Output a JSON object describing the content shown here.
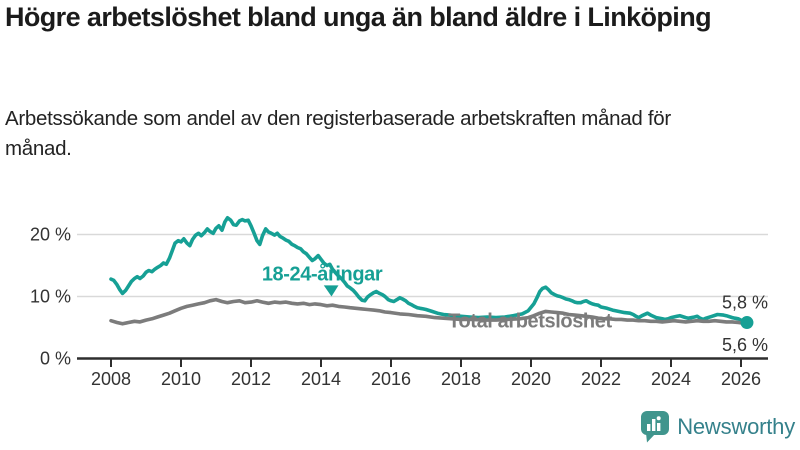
{
  "header": {
    "title": "Högre arbetslöshet bland unga än bland äldre i Linköping",
    "subtitle": "Arbetssökande som andel av den registerbaserade arbetskraften månad för månad."
  },
  "colors": {
    "young_line": "#16a095",
    "total_line": "#7c7c7c",
    "axis_text": "#333333",
    "axis_line": "#2e2e2e",
    "grid_line": "#d9d9d9",
    "end_label_text": "#333333",
    "logo_teal": "#35818b",
    "logo_icon_teal": "#40958d"
  },
  "chart_data": {
    "type": "line",
    "title": "Högre arbetslöshet bland unga än bland äldre i Linköping",
    "xlabel": "",
    "ylabel": "",
    "grid": "horizontal",
    "legend_position": "inline-labels",
    "xlim": [
      2007.6,
      2026.9
    ],
    "ylim": [
      0,
      24.5
    ],
    "x_ticks": [
      2008,
      2010,
      2012,
      2014,
      2016,
      2018,
      2020,
      2022,
      2024,
      2026
    ],
    "y_ticks": [
      {
        "value": 0,
        "label": "0 %"
      },
      {
        "value": 10,
        "label": "10 %"
      },
      {
        "value": 20,
        "label": "20 %"
      }
    ],
    "series": [
      {
        "name": "18-24-åringar",
        "color": "#16a095",
        "end_label": "5,8 %",
        "end_label_position": "above",
        "end_dot": true,
        "label_anchor": {
          "x": 2014.03,
          "y": 12.6
        },
        "points": [
          [
            2008.0,
            12.8
          ],
          [
            2008.08,
            12.6
          ],
          [
            2008.17,
            11.9
          ],
          [
            2008.25,
            11.1
          ],
          [
            2008.33,
            10.5
          ],
          [
            2008.42,
            11.0
          ],
          [
            2008.5,
            11.7
          ],
          [
            2008.58,
            12.4
          ],
          [
            2008.67,
            12.9
          ],
          [
            2008.75,
            13.2
          ],
          [
            2008.83,
            12.9
          ],
          [
            2008.92,
            13.3
          ],
          [
            2009.0,
            13.9
          ],
          [
            2009.08,
            14.2
          ],
          [
            2009.17,
            14.0
          ],
          [
            2009.25,
            14.4
          ],
          [
            2009.33,
            14.7
          ],
          [
            2009.42,
            15.0
          ],
          [
            2009.5,
            15.4
          ],
          [
            2009.58,
            15.2
          ],
          [
            2009.67,
            16.2
          ],
          [
            2009.75,
            17.4
          ],
          [
            2009.83,
            18.6
          ],
          [
            2009.92,
            19.0
          ],
          [
            2010.0,
            18.8
          ],
          [
            2010.08,
            19.3
          ],
          [
            2010.17,
            18.6
          ],
          [
            2010.25,
            18.2
          ],
          [
            2010.33,
            19.2
          ],
          [
            2010.42,
            19.9
          ],
          [
            2010.5,
            20.2
          ],
          [
            2010.58,
            19.8
          ],
          [
            2010.67,
            20.3
          ],
          [
            2010.75,
            20.9
          ],
          [
            2010.83,
            20.5
          ],
          [
            2010.92,
            20.2
          ],
          [
            2011.0,
            21.0
          ],
          [
            2011.08,
            21.4
          ],
          [
            2011.17,
            20.7
          ],
          [
            2011.25,
            22.0
          ],
          [
            2011.33,
            22.7
          ],
          [
            2011.42,
            22.3
          ],
          [
            2011.5,
            21.6
          ],
          [
            2011.58,
            21.5
          ],
          [
            2011.67,
            22.2
          ],
          [
            2011.75,
            22.4
          ],
          [
            2011.83,
            22.2
          ],
          [
            2011.92,
            22.3
          ],
          [
            2012.0,
            21.4
          ],
          [
            2012.08,
            20.3
          ],
          [
            2012.17,
            19.0
          ],
          [
            2012.25,
            18.4
          ],
          [
            2012.33,
            19.8
          ],
          [
            2012.42,
            20.9
          ],
          [
            2012.5,
            20.4
          ],
          [
            2012.58,
            20.2
          ],
          [
            2012.67,
            19.9
          ],
          [
            2012.75,
            20.2
          ],
          [
            2012.83,
            19.7
          ],
          [
            2012.92,
            19.4
          ],
          [
            2013.0,
            19.1
          ],
          [
            2013.08,
            18.9
          ],
          [
            2013.17,
            18.4
          ],
          [
            2013.25,
            18.2
          ],
          [
            2013.33,
            17.9
          ],
          [
            2013.42,
            17.7
          ],
          [
            2013.5,
            17.2
          ],
          [
            2013.58,
            16.9
          ],
          [
            2013.67,
            16.3
          ],
          [
            2013.75,
            15.8
          ],
          [
            2013.83,
            16.1
          ],
          [
            2013.92,
            16.6
          ],
          [
            2014.0,
            16.0
          ],
          [
            2014.08,
            15.4
          ],
          [
            2014.17,
            15.0
          ],
          [
            2014.25,
            15.2
          ],
          [
            2014.33,
            14.4
          ],
          [
            2014.42,
            13.8
          ],
          [
            2014.5,
            13.3
          ],
          [
            2014.58,
            12.9
          ],
          [
            2014.67,
            12.3
          ],
          [
            2014.75,
            11.7
          ],
          [
            2014.83,
            11.4
          ],
          [
            2014.92,
            11.0
          ],
          [
            2015.0,
            10.5
          ],
          [
            2015.08,
            9.9
          ],
          [
            2015.17,
            9.4
          ],
          [
            2015.25,
            9.3
          ],
          [
            2015.33,
            9.9
          ],
          [
            2015.42,
            10.3
          ],
          [
            2015.5,
            10.6
          ],
          [
            2015.58,
            10.8
          ],
          [
            2015.67,
            10.5
          ],
          [
            2015.75,
            10.3
          ],
          [
            2015.83,
            10.0
          ],
          [
            2015.92,
            9.5
          ],
          [
            2016.0,
            9.3
          ],
          [
            2016.08,
            9.2
          ],
          [
            2016.17,
            9.5
          ],
          [
            2016.25,
            9.8
          ],
          [
            2016.33,
            9.6
          ],
          [
            2016.42,
            9.3
          ],
          [
            2016.5,
            8.9
          ],
          [
            2016.58,
            8.7
          ],
          [
            2016.67,
            8.4
          ],
          [
            2016.75,
            8.2
          ],
          [
            2016.83,
            8.1
          ],
          [
            2016.92,
            8.0
          ],
          [
            2017.0,
            7.9
          ],
          [
            2017.17,
            7.6
          ],
          [
            2017.33,
            7.3
          ],
          [
            2017.5,
            7.1
          ],
          [
            2017.67,
            7.0
          ],
          [
            2017.83,
            6.9
          ],
          [
            2018.0,
            6.8
          ],
          [
            2018.25,
            6.7
          ],
          [
            2018.5,
            6.6
          ],
          [
            2018.75,
            6.7
          ],
          [
            2019.0,
            6.6
          ],
          [
            2019.25,
            6.7
          ],
          [
            2019.5,
            6.9
          ],
          [
            2019.75,
            7.2
          ],
          [
            2019.92,
            7.7
          ],
          [
            2020.08,
            8.8
          ],
          [
            2020.17,
            9.8
          ],
          [
            2020.25,
            10.8
          ],
          [
            2020.33,
            11.3
          ],
          [
            2020.42,
            11.5
          ],
          [
            2020.5,
            11.1
          ],
          [
            2020.58,
            10.6
          ],
          [
            2020.67,
            10.3
          ],
          [
            2020.75,
            10.1
          ],
          [
            2020.83,
            10.0
          ],
          [
            2020.92,
            9.8
          ],
          [
            2021.0,
            9.6
          ],
          [
            2021.08,
            9.5
          ],
          [
            2021.17,
            9.3
          ],
          [
            2021.25,
            9.1
          ],
          [
            2021.33,
            9.0
          ],
          [
            2021.42,
            9.0
          ],
          [
            2021.5,
            9.2
          ],
          [
            2021.58,
            9.3
          ],
          [
            2021.67,
            9.0
          ],
          [
            2021.75,
            8.8
          ],
          [
            2021.83,
            8.7
          ],
          [
            2021.92,
            8.6
          ],
          [
            2022.0,
            8.3
          ],
          [
            2022.17,
            8.1
          ],
          [
            2022.33,
            7.8
          ],
          [
            2022.5,
            7.6
          ],
          [
            2022.67,
            7.4
          ],
          [
            2022.83,
            7.3
          ],
          [
            2022.92,
            7.1
          ],
          [
            2023.0,
            6.8
          ],
          [
            2023.08,
            6.6
          ],
          [
            2023.17,
            6.9
          ],
          [
            2023.33,
            7.3
          ],
          [
            2023.42,
            7.0
          ],
          [
            2023.58,
            6.6
          ],
          [
            2023.75,
            6.4
          ],
          [
            2023.83,
            6.3
          ],
          [
            2023.92,
            6.4
          ],
          [
            2024.0,
            6.6
          ],
          [
            2024.17,
            6.8
          ],
          [
            2024.25,
            6.9
          ],
          [
            2024.42,
            6.6
          ],
          [
            2024.5,
            6.5
          ],
          [
            2024.67,
            6.7
          ],
          [
            2024.75,
            6.8
          ],
          [
            2024.83,
            6.5
          ],
          [
            2024.92,
            6.3
          ],
          [
            2025.0,
            6.5
          ],
          [
            2025.17,
            6.8
          ],
          [
            2025.33,
            7.1
          ],
          [
            2025.5,
            7.0
          ],
          [
            2025.58,
            6.9
          ],
          [
            2025.75,
            6.6
          ],
          [
            2025.83,
            6.5
          ],
          [
            2025.92,
            6.4
          ],
          [
            2026.0,
            6.2
          ],
          [
            2026.08,
            6.0
          ],
          [
            2026.17,
            5.8
          ]
        ]
      },
      {
        "name": "Total arbetslöshet",
        "color": "#7c7c7c",
        "end_label": "5,6 %",
        "end_label_position": "below",
        "end_dot": false,
        "label_anchor": {
          "x": 2019.97,
          "y": 5.0
        },
        "points": [
          [
            2008.0,
            6.1
          ],
          [
            2008.17,
            5.8
          ],
          [
            2008.33,
            5.6
          ],
          [
            2008.5,
            5.8
          ],
          [
            2008.67,
            6.0
          ],
          [
            2008.83,
            5.9
          ],
          [
            2009.0,
            6.2
          ],
          [
            2009.17,
            6.4
          ],
          [
            2009.33,
            6.7
          ],
          [
            2009.5,
            7.0
          ],
          [
            2009.67,
            7.3
          ],
          [
            2009.83,
            7.7
          ],
          [
            2010.0,
            8.1
          ],
          [
            2010.17,
            8.4
          ],
          [
            2010.33,
            8.6
          ],
          [
            2010.5,
            8.8
          ],
          [
            2010.67,
            9.0
          ],
          [
            2010.83,
            9.3
          ],
          [
            2011.0,
            9.5
          ],
          [
            2011.17,
            9.2
          ],
          [
            2011.33,
            9.0
          ],
          [
            2011.5,
            9.2
          ],
          [
            2011.67,
            9.3
          ],
          [
            2011.83,
            9.0
          ],
          [
            2012.0,
            9.1
          ],
          [
            2012.17,
            9.3
          ],
          [
            2012.33,
            9.1
          ],
          [
            2012.5,
            8.9
          ],
          [
            2012.67,
            9.1
          ],
          [
            2012.83,
            9.0
          ],
          [
            2013.0,
            9.1
          ],
          [
            2013.17,
            8.9
          ],
          [
            2013.33,
            8.8
          ],
          [
            2013.5,
            8.9
          ],
          [
            2013.67,
            8.7
          ],
          [
            2013.83,
            8.8
          ],
          [
            2014.0,
            8.7
          ],
          [
            2014.17,
            8.5
          ],
          [
            2014.33,
            8.6
          ],
          [
            2014.5,
            8.4
          ],
          [
            2014.67,
            8.3
          ],
          [
            2014.83,
            8.2
          ],
          [
            2015.0,
            8.1
          ],
          [
            2015.17,
            8.0
          ],
          [
            2015.33,
            7.9
          ],
          [
            2015.5,
            7.8
          ],
          [
            2015.67,
            7.7
          ],
          [
            2015.83,
            7.5
          ],
          [
            2016.0,
            7.4
          ],
          [
            2016.25,
            7.2
          ],
          [
            2016.5,
            7.1
          ],
          [
            2016.75,
            6.9
          ],
          [
            2017.0,
            6.8
          ],
          [
            2017.25,
            6.6
          ],
          [
            2017.5,
            6.5
          ],
          [
            2017.75,
            6.4
          ],
          [
            2018.0,
            6.3
          ],
          [
            2018.33,
            6.3
          ],
          [
            2018.67,
            6.2
          ],
          [
            2019.0,
            6.2
          ],
          [
            2019.33,
            6.3
          ],
          [
            2019.67,
            6.4
          ],
          [
            2019.92,
            6.6
          ],
          [
            2020.08,
            6.9
          ],
          [
            2020.25,
            7.3
          ],
          [
            2020.42,
            7.6
          ],
          [
            2020.58,
            7.5
          ],
          [
            2020.75,
            7.4
          ],
          [
            2020.92,
            7.3
          ],
          [
            2021.08,
            7.1
          ],
          [
            2021.25,
            7.0
          ],
          [
            2021.42,
            6.9
          ],
          [
            2021.58,
            6.8
          ],
          [
            2021.75,
            6.7
          ],
          [
            2021.92,
            6.5
          ],
          [
            2022.08,
            6.4
          ],
          [
            2022.25,
            6.4
          ],
          [
            2022.42,
            6.3
          ],
          [
            2022.58,
            6.3
          ],
          [
            2022.75,
            6.2
          ],
          [
            2022.92,
            6.2
          ],
          [
            2023.08,
            6.1
          ],
          [
            2023.25,
            6.1
          ],
          [
            2023.42,
            6.0
          ],
          [
            2023.58,
            6.0
          ],
          [
            2023.75,
            5.9
          ],
          [
            2023.92,
            6.0
          ],
          [
            2024.08,
            6.1
          ],
          [
            2024.25,
            6.0
          ],
          [
            2024.42,
            5.9
          ],
          [
            2024.58,
            6.0
          ],
          [
            2024.75,
            6.1
          ],
          [
            2024.92,
            6.0
          ],
          [
            2025.08,
            6.0
          ],
          [
            2025.25,
            6.1
          ],
          [
            2025.42,
            6.0
          ],
          [
            2025.58,
            5.9
          ],
          [
            2025.75,
            5.9
          ],
          [
            2025.92,
            5.8
          ],
          [
            2026.08,
            5.7
          ],
          [
            2026.17,
            5.6
          ]
        ]
      }
    ],
    "annotations": {
      "arrow": {
        "shape": "triangle-down",
        "color": "#16a095",
        "points_chart": [
          [
            2014.08,
            11.8
          ],
          [
            2014.5,
            11.8
          ],
          [
            2014.3,
            10.0
          ]
        ]
      }
    }
  },
  "logo": {
    "text": "Newsworthy"
  }
}
